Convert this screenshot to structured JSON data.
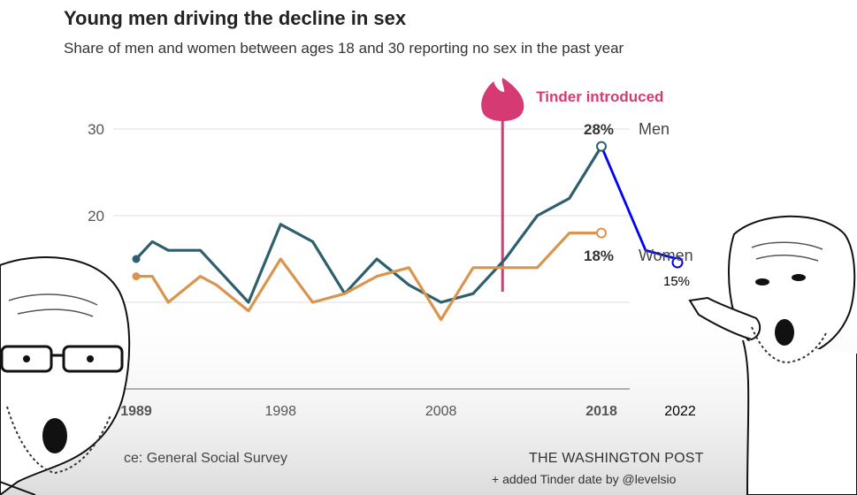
{
  "title": "Young men driving the decline in sex",
  "subtitle": "Share of men and women between ages 18 and 30 reporting no sex in the past year",
  "source": "ce: General Social Survey",
  "publisher": "THE WASHINGTON POST",
  "credit": "+ added Tinder date by @levelsio",
  "colors": {
    "men": "#2e5f6e",
    "women": "#d9954e",
    "tinder": "#d63a72",
    "extension": "#0000ff",
    "grid": "#dddddd"
  },
  "chart_data": {
    "type": "line",
    "x_ticks": [
      "1989",
      "1998",
      "2008",
      "2018",
      "2022"
    ],
    "y_ticks": [
      "20",
      "30"
    ],
    "ylim": [
      0,
      30
    ],
    "grid": true,
    "series": [
      {
        "name": "Men",
        "end_label": "28%",
        "x": [
          1989,
          1990,
          1991,
          1993,
          1994,
          1996,
          1998,
          2000,
          2002,
          2004,
          2006,
          2008,
          2010,
          2012,
          2014,
          2016,
          2018
        ],
        "values": [
          15,
          17,
          16,
          16,
          14,
          10,
          19,
          17,
          11,
          15,
          12,
          10,
          11,
          15,
          20,
          22,
          28
        ]
      },
      {
        "name": "Women",
        "end_label": "18%",
        "x": [
          1989,
          1990,
          1991,
          1993,
          1994,
          1996,
          1998,
          2000,
          2002,
          2004,
          2006,
          2008,
          2010,
          2012,
          2014,
          2016,
          2018
        ],
        "values": [
          13,
          13,
          10,
          13,
          12,
          9,
          15,
          10,
          11,
          13,
          14,
          8,
          14,
          14,
          14,
          18,
          18
        ]
      },
      {
        "end_label": "15%",
        "x": [
          2018,
          2020,
          2022
        ],
        "values": [
          28,
          16,
          15
        ]
      }
    ],
    "annotations": [
      {
        "text": "Tinder introduced",
        "x": 2012
      }
    ]
  }
}
